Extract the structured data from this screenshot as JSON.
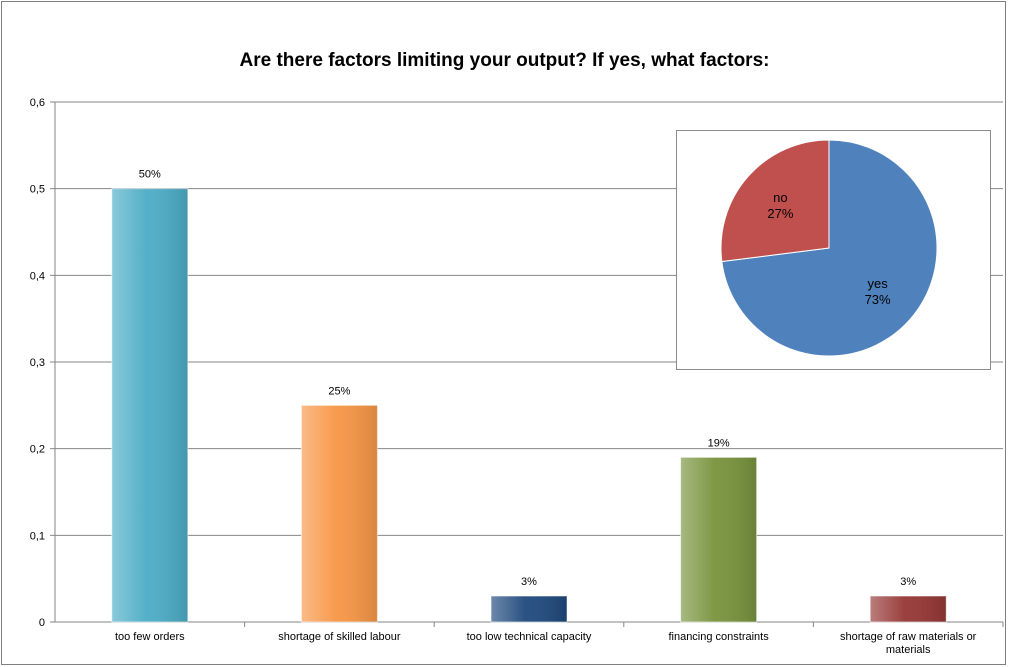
{
  "chart_data": [
    {
      "type": "bar",
      "title": "Are there factors limiting your output? If yes, what factors:",
      "categories": [
        "too few orders",
        "shortage of skilled labour",
        "too low technical capacity",
        "financing constraints",
        "shortage of raw materials or materials"
      ],
      "values": [
        0.5,
        0.25,
        0.03,
        0.19,
        0.03
      ],
      "data_labels": [
        "50%",
        "25%",
        "3%",
        "19%",
        "3%"
      ],
      "bar_colors": [
        "#4bacc6",
        "#f79646",
        "#1f497d",
        "#77933c",
        "#953735"
      ],
      "ylim": [
        0,
        0.6
      ],
      "yticks": [
        "0",
        "0,1",
        "0,2",
        "0,3",
        "0,4",
        "0,5",
        "0,6"
      ],
      "grid": true,
      "xlabel": "",
      "ylabel": ""
    },
    {
      "type": "pie",
      "labels": [
        "yes",
        "no"
      ],
      "values": [
        0.73,
        0.27
      ],
      "data_labels": [
        "73%",
        "27%"
      ],
      "colors": [
        "#4f81bd",
        "#c0504d"
      ]
    }
  ]
}
